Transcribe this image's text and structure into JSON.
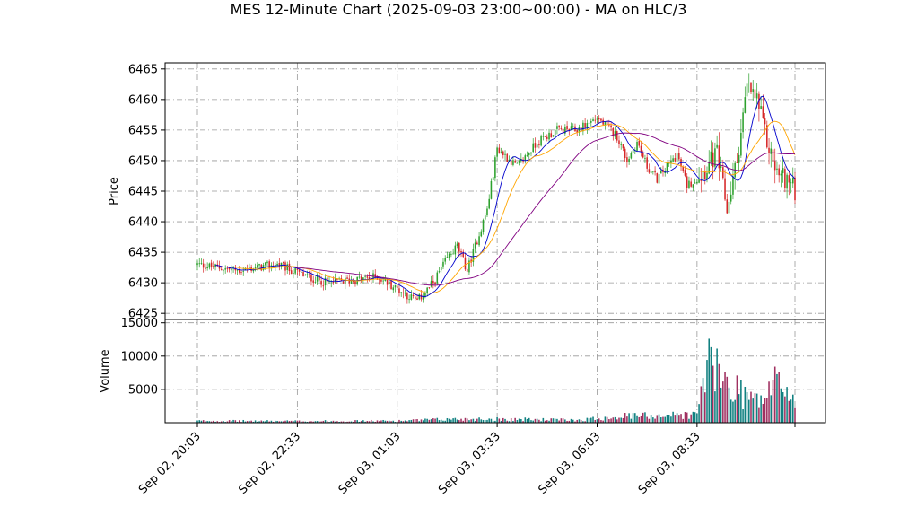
{
  "chart_data": {
    "type": "candlestick",
    "title": "MES 12-Minute Chart (2025-09-03 23:00~00:00) - MA on HLC/3",
    "price_panel": {
      "ylabel": "Price",
      "ylim": [
        6424,
        6466
      ],
      "yticks": [
        6425,
        6430,
        6435,
        6440,
        6445,
        6450,
        6455,
        6460,
        6465
      ],
      "grid": true
    },
    "volume_panel": {
      "ylabel": "Volume",
      "ylim": [
        0,
        15500
      ],
      "yticks": [
        5000,
        10000,
        15000
      ],
      "grid": true
    },
    "x_tick_labels": [
      "Sep 02, 20:03",
      "Sep 02, 22:33",
      "Sep 03, 01:03",
      "Sep 03, 03:33",
      "Sep 03, 06:03",
      "Sep 03, 08:33"
    ],
    "n_bars": 300,
    "bar_interval_minutes": 1,
    "colors": {
      "up_candle": "#2ca02c",
      "down_candle": "#d62728",
      "volume_up": "#108080",
      "volume_down": "#a03060",
      "ma_fast": "#0000cc",
      "ma_mid": "#ffa500",
      "ma_slow": "#800080",
      "grid": "#999999"
    },
    "price_anchors": {
      "bar_index": [
        0,
        20,
        40,
        55,
        65,
        80,
        90,
        100,
        105,
        110,
        118,
        125,
        130,
        135,
        145,
        150,
        160,
        170,
        180,
        190,
        200,
        210,
        215,
        220,
        225,
        230,
        240,
        245,
        250,
        260,
        265,
        270,
        275,
        280,
        285,
        290,
        295,
        299
      ],
      "price": [
        6433,
        6432,
        6433,
        6431,
        6430,
        6430.5,
        6431,
        6429,
        6428,
        6427,
        6430,
        6434,
        6436,
        6432,
        6442,
        6452,
        6449,
        6453,
        6455,
        6455,
        6457,
        6454,
        6450,
        6453,
        6449,
        6447,
        6451,
        6446,
        6447,
        6451,
        6442,
        6450,
        6462,
        6460,
        6453,
        6448,
        6447,
        6445
      ]
    },
    "volume_anchors": {
      "bar_index": [
        0,
        50,
        100,
        130,
        150,
        170,
        190,
        200,
        210,
        230,
        250,
        255,
        260,
        265,
        270,
        280,
        285,
        290,
        295,
        299
      ],
      "volume": [
        350,
        300,
        350,
        700,
        700,
        600,
        500,
        800,
        1200,
        1400,
        1500,
        12000,
        9000,
        7500,
        6500,
        4000,
        5000,
        8500,
        6000,
        4000
      ]
    },
    "ma_periods": [
      10,
      20,
      50
    ]
  }
}
